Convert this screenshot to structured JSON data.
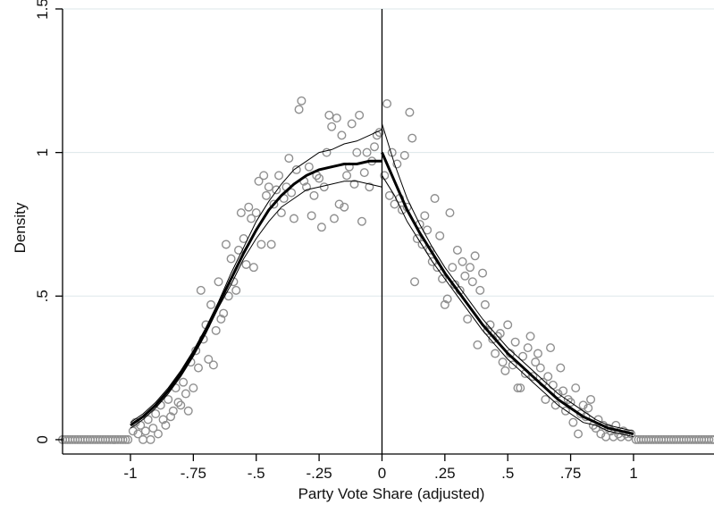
{
  "chart_data": {
    "type": "scatter",
    "xlabel": "Party Vote Share (adjusted)",
    "ylabel": "Density",
    "xlim": [
      -1.27,
      1.32
    ],
    "ylim": [
      -0.05,
      1.5
    ],
    "x_ticks": [
      {
        "value": -1,
        "label": "-1"
      },
      {
        "value": -0.75,
        "label": "-.75"
      },
      {
        "value": -0.5,
        "label": "-.5"
      },
      {
        "value": -0.25,
        "label": "-.25"
      },
      {
        "value": 0,
        "label": "0"
      },
      {
        "value": 0.25,
        "label": ".25"
      },
      {
        "value": 0.5,
        "label": ".5"
      },
      {
        "value": 0.75,
        "label": ".75"
      },
      {
        "value": 1,
        "label": "1"
      }
    ],
    "y_ticks": [
      {
        "value": 0,
        "label": "0"
      },
      {
        "value": 0.5,
        "label": ".5"
      },
      {
        "value": 1,
        "label": "1"
      },
      {
        "value": 1.5,
        "label": "1.5"
      }
    ],
    "grid": "horizontal",
    "cutoff": 0,
    "zero_density_x": [
      -1.27,
      -1.26,
      -1.25,
      -1.24,
      -1.23,
      -1.22,
      -1.21,
      -1.2,
      -1.19,
      -1.18,
      -1.17,
      -1.16,
      -1.15,
      -1.14,
      -1.13,
      -1.12,
      -1.11,
      -1.1,
      -1.09,
      -1.08,
      -1.07,
      -1.06,
      -1.05,
      -1.04,
      -1.03,
      -1.02,
      -1.01,
      1.01,
      1.02,
      1.03,
      1.04,
      1.05,
      1.06,
      1.07,
      1.08,
      1.09,
      1.1,
      1.11,
      1.12,
      1.13,
      1.14,
      1.15,
      1.16,
      1.17,
      1.18,
      1.19,
      1.2,
      1.21,
      1.22,
      1.23,
      1.24,
      1.25,
      1.26,
      1.27,
      1.28,
      1.29,
      1.3,
      1.31,
      1.32
    ],
    "points": [
      {
        "x": -0.99,
        "y": 0.03
      },
      {
        "x": -0.98,
        "y": 0.06
      },
      {
        "x": -0.97,
        "y": 0.02
      },
      {
        "x": -0.96,
        "y": 0.05
      },
      {
        "x": -0.95,
        "y": 0.0
      },
      {
        "x": -0.94,
        "y": 0.03
      },
      {
        "x": -0.93,
        "y": 0.07
      },
      {
        "x": -0.92,
        "y": 0.0
      },
      {
        "x": -0.91,
        "y": 0.04
      },
      {
        "x": -0.9,
        "y": 0.09
      },
      {
        "x": -0.89,
        "y": 0.02
      },
      {
        "x": -0.88,
        "y": 0.12
      },
      {
        "x": -0.87,
        "y": 0.07
      },
      {
        "x": -0.86,
        "y": 0.05
      },
      {
        "x": -0.85,
        "y": 0.14
      },
      {
        "x": -0.84,
        "y": 0.08
      },
      {
        "x": -0.83,
        "y": 0.1
      },
      {
        "x": -0.82,
        "y": 0.18
      },
      {
        "x": -0.81,
        "y": 0.13
      },
      {
        "x": -0.8,
        "y": 0.12
      },
      {
        "x": -0.79,
        "y": 0.2
      },
      {
        "x": -0.78,
        "y": 0.16
      },
      {
        "x": -0.77,
        "y": 0.1
      },
      {
        "x": -0.76,
        "y": 0.27
      },
      {
        "x": -0.75,
        "y": 0.18
      },
      {
        "x": -0.74,
        "y": 0.31
      },
      {
        "x": -0.73,
        "y": 0.25
      },
      {
        "x": -0.72,
        "y": 0.52
      },
      {
        "x": -0.71,
        "y": 0.35
      },
      {
        "x": -0.7,
        "y": 0.4
      },
      {
        "x": -0.69,
        "y": 0.28
      },
      {
        "x": -0.68,
        "y": 0.47
      },
      {
        "x": -0.67,
        "y": 0.26
      },
      {
        "x": -0.66,
        "y": 0.38
      },
      {
        "x": -0.65,
        "y": 0.55
      },
      {
        "x": -0.64,
        "y": 0.42
      },
      {
        "x": -0.63,
        "y": 0.44
      },
      {
        "x": -0.62,
        "y": 0.68
      },
      {
        "x": -0.61,
        "y": 0.5
      },
      {
        "x": -0.6,
        "y": 0.63
      },
      {
        "x": -0.59,
        "y": 0.55
      },
      {
        "x": -0.58,
        "y": 0.52
      },
      {
        "x": -0.57,
        "y": 0.66
      },
      {
        "x": -0.56,
        "y": 0.79
      },
      {
        "x": -0.55,
        "y": 0.7
      },
      {
        "x": -0.54,
        "y": 0.61
      },
      {
        "x": -0.53,
        "y": 0.81
      },
      {
        "x": -0.52,
        "y": 0.77
      },
      {
        "x": -0.51,
        "y": 0.6
      },
      {
        "x": -0.5,
        "y": 0.79
      },
      {
        "x": -0.49,
        "y": 0.9
      },
      {
        "x": -0.48,
        "y": 0.68
      },
      {
        "x": -0.47,
        "y": 0.92
      },
      {
        "x": -0.46,
        "y": 0.85
      },
      {
        "x": -0.45,
        "y": 0.88
      },
      {
        "x": -0.44,
        "y": 0.68
      },
      {
        "x": -0.43,
        "y": 0.82
      },
      {
        "x": -0.42,
        "y": 0.87
      },
      {
        "x": -0.41,
        "y": 0.92
      },
      {
        "x": -0.4,
        "y": 0.79
      },
      {
        "x": -0.39,
        "y": 0.84
      },
      {
        "x": -0.38,
        "y": 0.88
      },
      {
        "x": -0.37,
        "y": 0.98
      },
      {
        "x": -0.36,
        "y": 0.86
      },
      {
        "x": -0.35,
        "y": 0.77
      },
      {
        "x": -0.34,
        "y": 0.94
      },
      {
        "x": -0.33,
        "y": 1.15
      },
      {
        "x": -0.32,
        "y": 1.18
      },
      {
        "x": -0.31,
        "y": 0.9
      },
      {
        "x": -0.3,
        "y": 0.88
      },
      {
        "x": -0.29,
        "y": 0.95
      },
      {
        "x": -0.28,
        "y": 0.78
      },
      {
        "x": -0.27,
        "y": 0.85
      },
      {
        "x": -0.26,
        "y": 0.92
      },
      {
        "x": -0.25,
        "y": 0.91
      },
      {
        "x": -0.24,
        "y": 0.74
      },
      {
        "x": -0.23,
        "y": 0.88
      },
      {
        "x": -0.22,
        "y": 1.0
      },
      {
        "x": -0.21,
        "y": 1.13
      },
      {
        "x": -0.2,
        "y": 1.09
      },
      {
        "x": -0.19,
        "y": 0.77
      },
      {
        "x": -0.18,
        "y": 1.12
      },
      {
        "x": -0.17,
        "y": 0.82
      },
      {
        "x": -0.16,
        "y": 1.06
      },
      {
        "x": -0.15,
        "y": 0.81
      },
      {
        "x": -0.14,
        "y": 0.92
      },
      {
        "x": -0.13,
        "y": 0.95
      },
      {
        "x": -0.12,
        "y": 1.1
      },
      {
        "x": -0.11,
        "y": 0.89
      },
      {
        "x": -0.1,
        "y": 1.0
      },
      {
        "x": -0.09,
        "y": 1.13
      },
      {
        "x": -0.08,
        "y": 0.76
      },
      {
        "x": -0.07,
        "y": 0.93
      },
      {
        "x": -0.06,
        "y": 1.0
      },
      {
        "x": -0.05,
        "y": 0.88
      },
      {
        "x": -0.04,
        "y": 0.97
      },
      {
        "x": -0.03,
        "y": 1.02
      },
      {
        "x": -0.02,
        "y": 1.06
      },
      {
        "x": -0.01,
        "y": 1.07
      },
      {
        "x": 0.01,
        "y": 0.92
      },
      {
        "x": 0.02,
        "y": 1.17
      },
      {
        "x": 0.03,
        "y": 0.85
      },
      {
        "x": 0.04,
        "y": 1.0
      },
      {
        "x": 0.05,
        "y": 0.82
      },
      {
        "x": 0.06,
        "y": 0.96
      },
      {
        "x": 0.07,
        "y": 0.84
      },
      {
        "x": 0.08,
        "y": 0.8
      },
      {
        "x": 0.09,
        "y": 0.99
      },
      {
        "x": 0.1,
        "y": 0.81
      },
      {
        "x": 0.11,
        "y": 1.14
      },
      {
        "x": 0.12,
        "y": 1.05
      },
      {
        "x": 0.13,
        "y": 0.55
      },
      {
        "x": 0.14,
        "y": 0.7
      },
      {
        "x": 0.15,
        "y": 0.75
      },
      {
        "x": 0.16,
        "y": 0.68
      },
      {
        "x": 0.17,
        "y": 0.78
      },
      {
        "x": 0.18,
        "y": 0.73
      },
      {
        "x": 0.19,
        "y": 0.66
      },
      {
        "x": 0.2,
        "y": 0.62
      },
      {
        "x": 0.21,
        "y": 0.84
      },
      {
        "x": 0.22,
        "y": 0.6
      },
      {
        "x": 0.23,
        "y": 0.71
      },
      {
        "x": 0.24,
        "y": 0.56
      },
      {
        "x": 0.25,
        "y": 0.47
      },
      {
        "x": 0.26,
        "y": 0.49
      },
      {
        "x": 0.27,
        "y": 0.79
      },
      {
        "x": 0.28,
        "y": 0.6
      },
      {
        "x": 0.29,
        "y": 0.54
      },
      {
        "x": 0.3,
        "y": 0.66
      },
      {
        "x": 0.31,
        "y": 0.52
      },
      {
        "x": 0.32,
        "y": 0.62
      },
      {
        "x": 0.33,
        "y": 0.57
      },
      {
        "x": 0.34,
        "y": 0.42
      },
      {
        "x": 0.35,
        "y": 0.6
      },
      {
        "x": 0.36,
        "y": 0.55
      },
      {
        "x": 0.37,
        "y": 0.64
      },
      {
        "x": 0.38,
        "y": 0.33
      },
      {
        "x": 0.39,
        "y": 0.52
      },
      {
        "x": 0.4,
        "y": 0.58
      },
      {
        "x": 0.41,
        "y": 0.47
      },
      {
        "x": 0.42,
        "y": 0.38
      },
      {
        "x": 0.43,
        "y": 0.4
      },
      {
        "x": 0.44,
        "y": 0.35
      },
      {
        "x": 0.45,
        "y": 0.3
      },
      {
        "x": 0.46,
        "y": 0.36
      },
      {
        "x": 0.47,
        "y": 0.37
      },
      {
        "x": 0.48,
        "y": 0.27
      },
      {
        "x": 0.49,
        "y": 0.24
      },
      {
        "x": 0.5,
        "y": 0.4
      },
      {
        "x": 0.51,
        "y": 0.3
      },
      {
        "x": 0.52,
        "y": 0.26
      },
      {
        "x": 0.53,
        "y": 0.34
      },
      {
        "x": 0.54,
        "y": 0.18
      },
      {
        "x": 0.55,
        "y": 0.18
      },
      {
        "x": 0.56,
        "y": 0.29
      },
      {
        "x": 0.57,
        "y": 0.23
      },
      {
        "x": 0.58,
        "y": 0.32
      },
      {
        "x": 0.59,
        "y": 0.36
      },
      {
        "x": 0.6,
        "y": 0.22
      },
      {
        "x": 0.61,
        "y": 0.27
      },
      {
        "x": 0.62,
        "y": 0.3
      },
      {
        "x": 0.63,
        "y": 0.25
      },
      {
        "x": 0.64,
        "y": 0.2
      },
      {
        "x": 0.65,
        "y": 0.14
      },
      {
        "x": 0.66,
        "y": 0.22
      },
      {
        "x": 0.67,
        "y": 0.32
      },
      {
        "x": 0.68,
        "y": 0.19
      },
      {
        "x": 0.69,
        "y": 0.12
      },
      {
        "x": 0.7,
        "y": 0.16
      },
      {
        "x": 0.71,
        "y": 0.25
      },
      {
        "x": 0.72,
        "y": 0.17
      },
      {
        "x": 0.73,
        "y": 0.1
      },
      {
        "x": 0.74,
        "y": 0.14
      },
      {
        "x": 0.75,
        "y": 0.13
      },
      {
        "x": 0.76,
        "y": 0.06
      },
      {
        "x": 0.77,
        "y": 0.18
      },
      {
        "x": 0.78,
        "y": 0.02
      },
      {
        "x": 0.79,
        "y": 0.09
      },
      {
        "x": 0.8,
        "y": 0.12
      },
      {
        "x": 0.81,
        "y": 0.08
      },
      {
        "x": 0.82,
        "y": 0.11
      },
      {
        "x": 0.83,
        "y": 0.14
      },
      {
        "x": 0.84,
        "y": 0.05
      },
      {
        "x": 0.85,
        "y": 0.04
      },
      {
        "x": 0.86,
        "y": 0.07
      },
      {
        "x": 0.87,
        "y": 0.02
      },
      {
        "x": 0.88,
        "y": 0.05
      },
      {
        "x": 0.89,
        "y": 0.01
      },
      {
        "x": 0.9,
        "y": 0.04
      },
      {
        "x": 0.91,
        "y": 0.03
      },
      {
        "x": 0.92,
        "y": 0.01
      },
      {
        "x": 0.93,
        "y": 0.05
      },
      {
        "x": 0.94,
        "y": 0.02
      },
      {
        "x": 0.95,
        "y": 0.01
      },
      {
        "x": 0.96,
        "y": 0.03
      },
      {
        "x": 0.97,
        "y": 0.02
      },
      {
        "x": 0.98,
        "y": 0.01
      },
      {
        "x": 0.99,
        "y": 0.02
      }
    ],
    "fit_left": {
      "x": [
        -1.0,
        -0.95,
        -0.9,
        -0.85,
        -0.8,
        -0.75,
        -0.7,
        -0.65,
        -0.6,
        -0.55,
        -0.5,
        -0.45,
        -0.4,
        -0.35,
        -0.3,
        -0.25,
        -0.2,
        -0.15,
        -0.1,
        -0.05,
        0.0
      ],
      "fit": [
        0.05,
        0.08,
        0.12,
        0.17,
        0.23,
        0.3,
        0.38,
        0.47,
        0.56,
        0.65,
        0.73,
        0.8,
        0.85,
        0.89,
        0.92,
        0.94,
        0.95,
        0.96,
        0.96,
        0.97,
        0.97
      ],
      "upper": [
        0.06,
        0.09,
        0.13,
        0.18,
        0.24,
        0.31,
        0.39,
        0.48,
        0.58,
        0.67,
        0.76,
        0.83,
        0.89,
        0.94,
        0.97,
        1.0,
        1.01,
        1.03,
        1.04,
        1.06,
        1.08
      ],
      "lower": [
        0.04,
        0.07,
        0.11,
        0.16,
        0.22,
        0.29,
        0.37,
        0.46,
        0.54,
        0.63,
        0.7,
        0.76,
        0.81,
        0.84,
        0.87,
        0.88,
        0.89,
        0.9,
        0.9,
        0.89,
        0.88
      ]
    },
    "fit_right": {
      "x": [
        0.0,
        0.05,
        0.1,
        0.15,
        0.2,
        0.25,
        0.3,
        0.35,
        0.4,
        0.45,
        0.5,
        0.55,
        0.6,
        0.65,
        0.7,
        0.75,
        0.8,
        0.85,
        0.9,
        0.95,
        1.0
      ],
      "fit": [
        1.0,
        0.9,
        0.8,
        0.72,
        0.65,
        0.58,
        0.52,
        0.46,
        0.4,
        0.35,
        0.3,
        0.26,
        0.22,
        0.18,
        0.14,
        0.11,
        0.08,
        0.06,
        0.04,
        0.03,
        0.02
      ],
      "upper": [
        1.1,
        0.96,
        0.84,
        0.75,
        0.67,
        0.6,
        0.54,
        0.48,
        0.42,
        0.37,
        0.32,
        0.28,
        0.24,
        0.2,
        0.16,
        0.13,
        0.1,
        0.07,
        0.05,
        0.04,
        0.03
      ],
      "lower": [
        0.92,
        0.85,
        0.76,
        0.69,
        0.62,
        0.56,
        0.5,
        0.44,
        0.38,
        0.33,
        0.28,
        0.24,
        0.2,
        0.16,
        0.12,
        0.09,
        0.06,
        0.05,
        0.03,
        0.02,
        0.01
      ]
    }
  }
}
